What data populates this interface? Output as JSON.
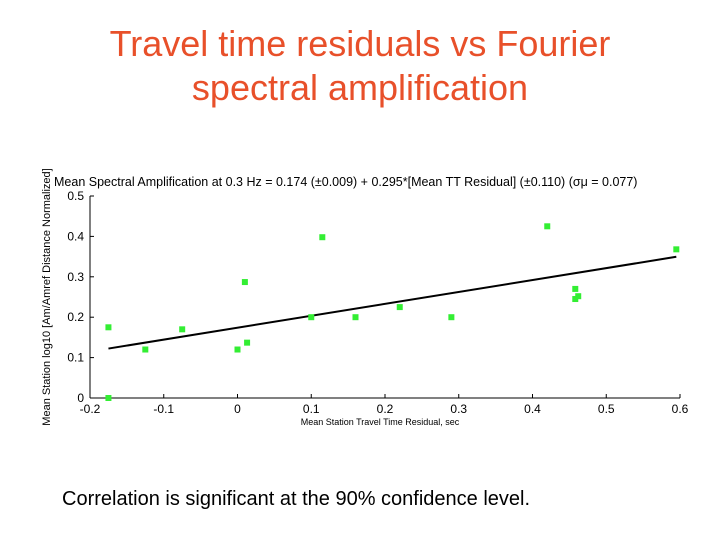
{
  "slide": {
    "title_line1": "Travel time residuals vs Fourier",
    "title_line2": "spectral amplification",
    "caption": "Correlation is significant at the 90% confidence level."
  },
  "colors": {
    "title": "#e8502a",
    "points": "#33ee33",
    "fit_line": "#000000"
  },
  "chart_data": {
    "type": "scatter",
    "title": "Mean Spectral Amplification at 0.3 Hz = 0.174 (±0.009) + 0.295*[Mean TT Residual] (±0.110)  (σμ = 0.077)",
    "xlabel": "Mean Station Travel Time Residual, sec",
    "ylabel": "Mean Station log10 [Am/Amref Distance Normalized]",
    "xlim": [
      -0.2,
      0.6
    ],
    "ylim": [
      0,
      0.5
    ],
    "xticks": [
      "-0.2",
      "-0.1",
      "0",
      "0.1",
      "0.2",
      "0.3",
      "0.4",
      "0.5",
      "0.6"
    ],
    "yticks": [
      "0",
      "0.1",
      "0.2",
      "0.3",
      "0.4",
      "0.5"
    ],
    "grid": false,
    "legend": "none",
    "series": [
      {
        "points": [
          {
            "x": -0.175,
            "y": 0.0
          },
          {
            "x": -0.175,
            "y": 0.175
          },
          {
            "x": -0.125,
            "y": 0.12
          },
          {
            "x": -0.075,
            "y": 0.17
          },
          {
            "x": 0.0,
            "y": 0.12
          },
          {
            "x": 0.01,
            "y": 0.287
          },
          {
            "x": 0.013,
            "y": 0.137
          },
          {
            "x": 0.1,
            "y": 0.2
          },
          {
            "x": 0.115,
            "y": 0.398
          },
          {
            "x": 0.16,
            "y": 0.2
          },
          {
            "x": 0.22,
            "y": 0.225
          },
          {
            "x": 0.29,
            "y": 0.2
          },
          {
            "x": 0.42,
            "y": 0.425
          },
          {
            "x": 0.458,
            "y": 0.27
          },
          {
            "x": 0.458,
            "y": 0.245
          },
          {
            "x": 0.462,
            "y": 0.252
          },
          {
            "x": 0.595,
            "y": 0.368
          }
        ]
      }
    ],
    "fit_line": {
      "intercept": 0.174,
      "slope": 0.295,
      "x": [
        -0.175,
        0.595
      ]
    }
  }
}
